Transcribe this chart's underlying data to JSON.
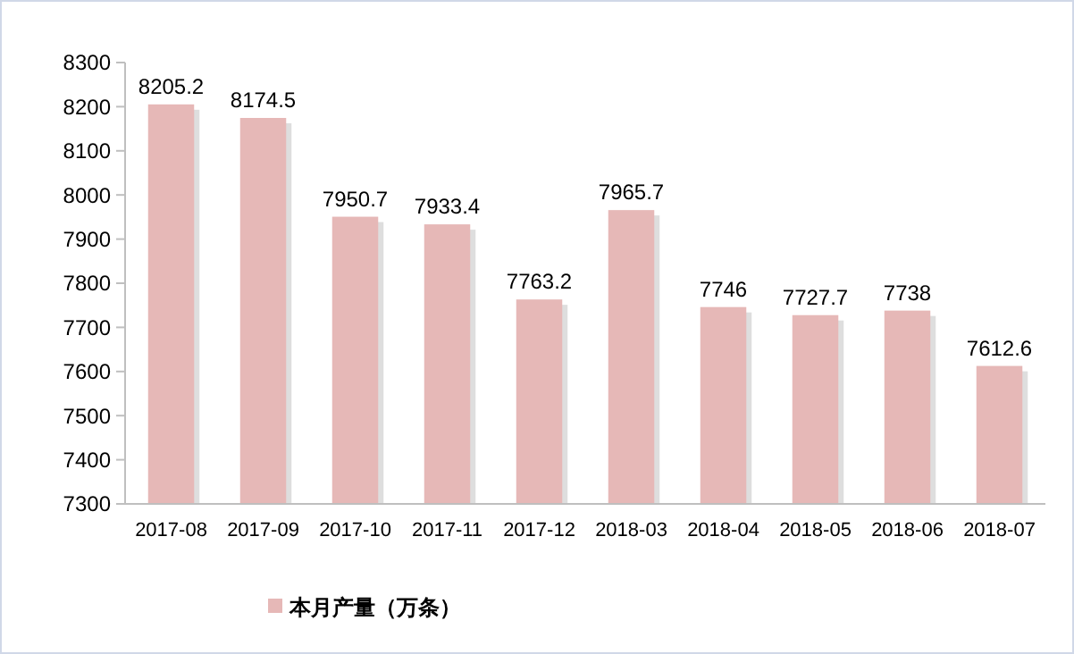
{
  "chart_data": {
    "type": "bar",
    "categories": [
      "2017-08",
      "2017-09",
      "2017-10",
      "2017-11",
      "2017-12",
      "2018-03",
      "2018-04",
      "2018-05",
      "2018-06",
      "2018-07"
    ],
    "series": [
      {
        "name": "本月产量（万条）",
        "color": "#e6b8b7",
        "values": [
          8205.2,
          8174.5,
          7950.7,
          7933.4,
          7763.2,
          7965.7,
          7746,
          7727.7,
          7738,
          7612.6
        ]
      }
    ],
    "ylim": [
      7300,
      8300
    ],
    "yticks": [
      7300,
      7400,
      7500,
      7600,
      7700,
      7800,
      7900,
      8000,
      8100,
      8200,
      8300
    ],
    "grid": false,
    "legend": "bottom",
    "data_labels": true
  }
}
